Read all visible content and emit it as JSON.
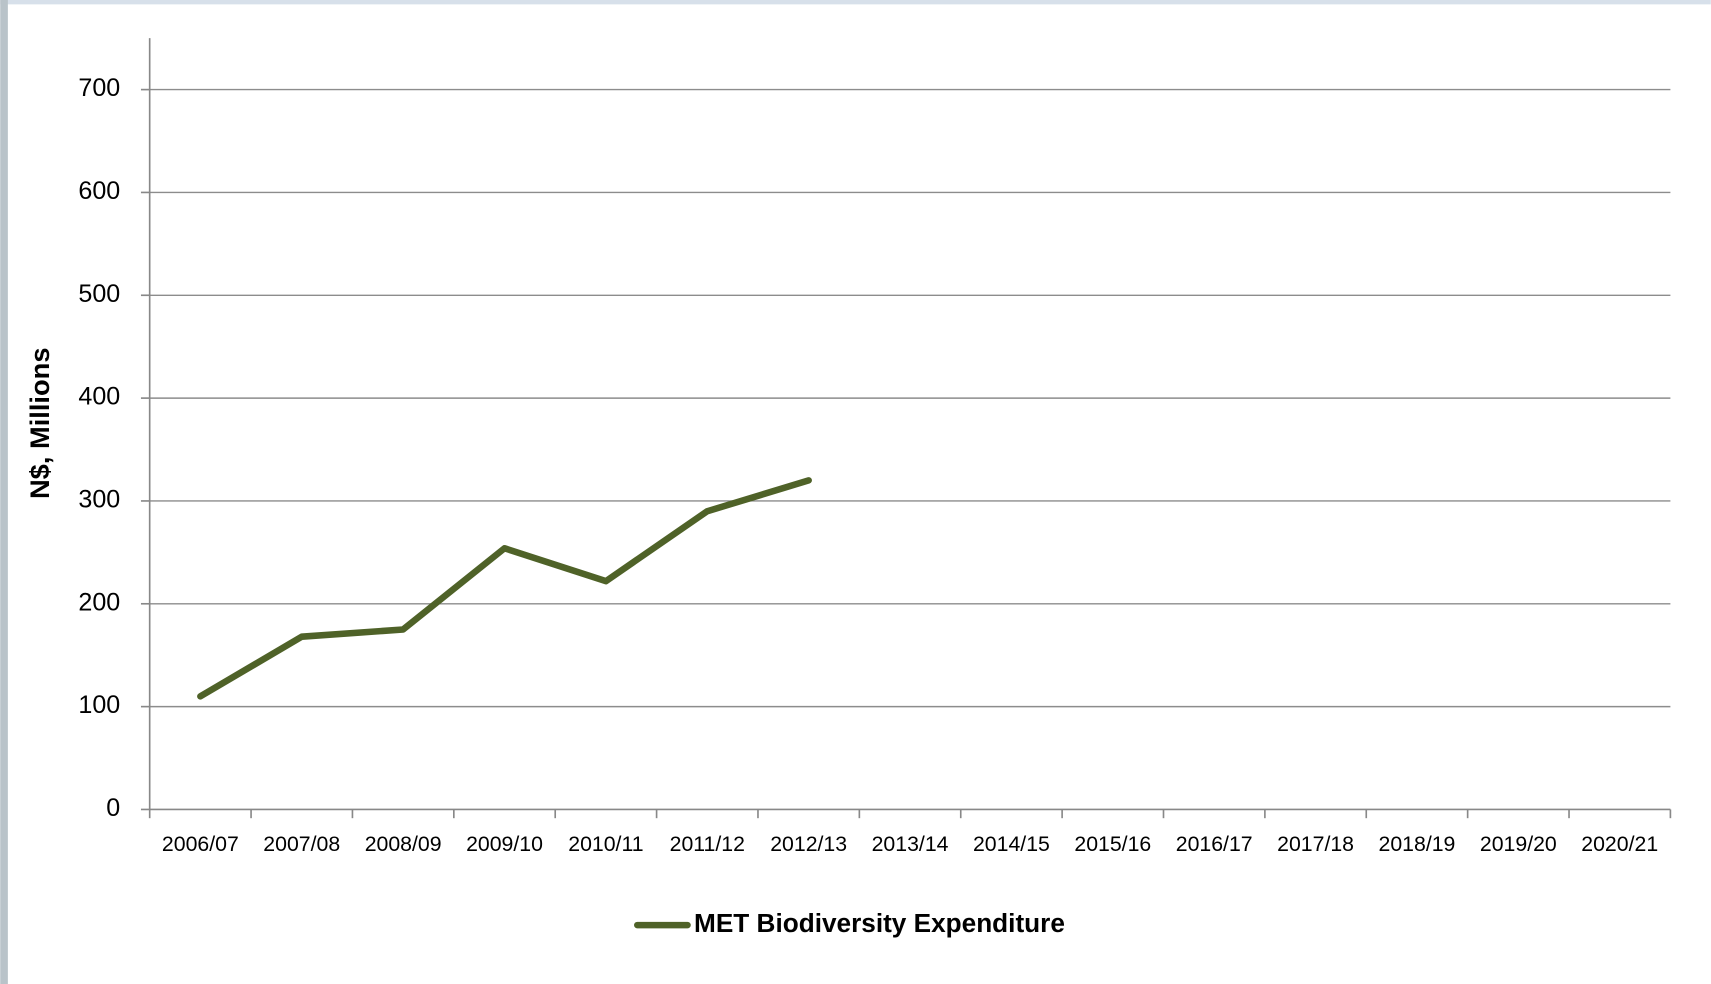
{
  "chart_data": {
    "type": "line",
    "y_label": "N$, Millions",
    "categories": [
      "2006/07",
      "2007/08",
      "2008/09",
      "2009/10",
      "2010/11",
      "2011/12",
      "2012/13",
      "2013/14",
      "2014/15",
      "2015/16",
      "2016/17",
      "2017/18",
      "2018/19",
      "2019/20",
      "2020/21"
    ],
    "series": [
      {
        "name": "MET Biodiversity Expenditure",
        "color": "#4f6228",
        "values": [
          110,
          168,
          175,
          254,
          222,
          290,
          320,
          null,
          null,
          null,
          null,
          null,
          null,
          null,
          null
        ]
      }
    ],
    "ylim": [
      0,
      750
    ],
    "yticks": [
      0,
      100,
      200,
      300,
      400,
      500,
      600,
      700
    ],
    "grid": true,
    "legend": "bottom"
  }
}
